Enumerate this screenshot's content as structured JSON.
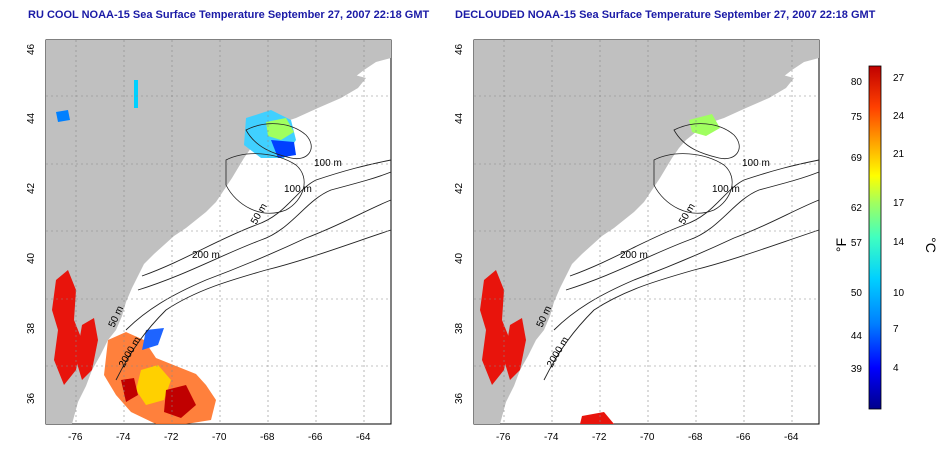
{
  "panels": [
    {
      "title": "RU COOL NOAA-15 Sea Surface Temperature September 27, 2007 22:18 GMT",
      "x_ticks": [
        "-76",
        "-74",
        "-72",
        "-70",
        "-68",
        "-66",
        "-64"
      ],
      "y_ticks": [
        "36",
        "38",
        "40",
        "42",
        "44",
        "46"
      ],
      "contour_labels": [
        "100 m",
        "100 m",
        "50 m",
        "200 m",
        "50 m",
        "2000 m"
      ]
    },
    {
      "title": "DECLOUDED NOAA-15 Sea Surface Temperature September 27, 2007 22:18 GMT",
      "x_ticks": [
        "-76",
        "-74",
        "-72",
        "-70",
        "-68",
        "-66",
        "-64"
      ],
      "y_ticks": [
        "36",
        "38",
        "40",
        "42",
        "44",
        "46"
      ],
      "contour_labels": [
        "100 m",
        "100 m",
        "50 m",
        "200 m",
        "50 m",
        "2000 m"
      ]
    }
  ],
  "colorbar": {
    "fahrenheit_label": "°F",
    "celsius_label": "°C",
    "fahrenheit_ticks": [
      "80",
      "75",
      "69",
      "62",
      "57",
      "50",
      "44",
      "39"
    ],
    "celsius_ticks": [
      "27",
      "24",
      "21",
      "17",
      "14",
      "10",
      "7",
      "4"
    ],
    "colors": [
      "#00008b",
      "#0000ff",
      "#0080ff",
      "#00d0ff",
      "#40ffc0",
      "#a0ff60",
      "#ffff00",
      "#ffa000",
      "#ff4000",
      "#c00000"
    ]
  },
  "colors": {
    "land": "#c0c0c0",
    "warm": "#e8140c",
    "grid": "#888888"
  }
}
